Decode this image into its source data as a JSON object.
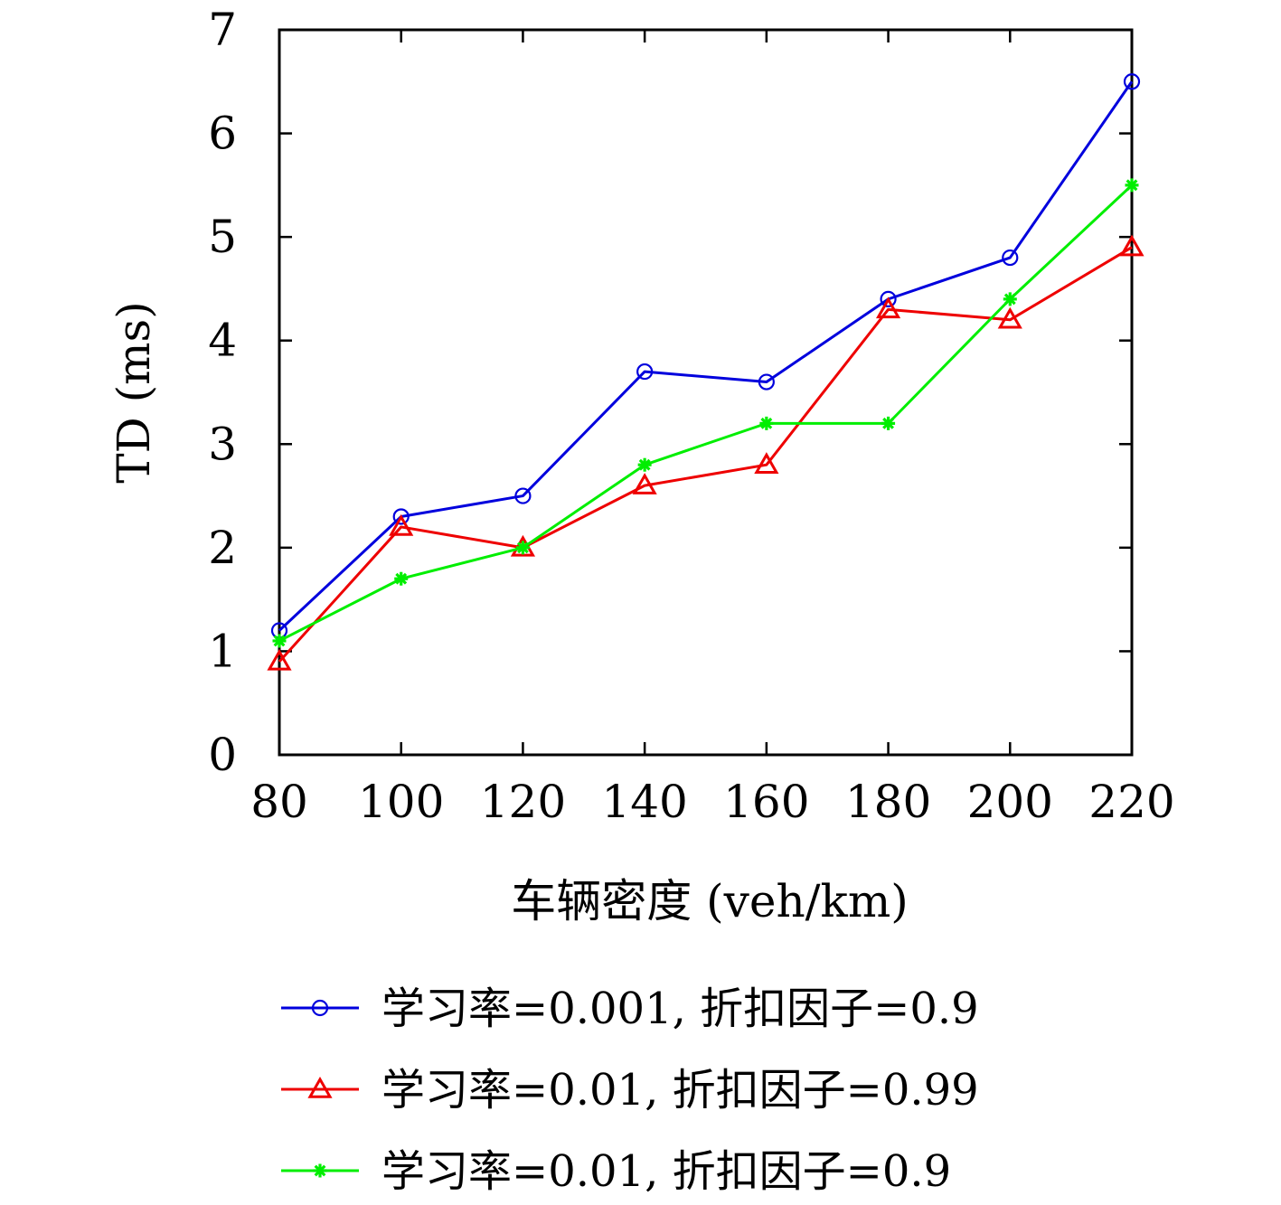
{
  "chart_data": {
    "type": "line",
    "title": "",
    "xlabel": "车辆密度 (veh/km)",
    "ylabel": "TD (ms)",
    "categories": [
      "80",
      "100",
      "120",
      "140",
      "160",
      "180",
      "200",
      "220"
    ],
    "x": [
      80,
      100,
      120,
      140,
      160,
      180,
      200,
      220
    ],
    "xlim": [
      80,
      220
    ],
    "ylim": [
      0,
      7
    ],
    "yticks": [
      "0",
      "1",
      "2",
      "3",
      "4",
      "5",
      "6",
      "7"
    ],
    "grid": false,
    "legend_position": "bottom",
    "series": [
      {
        "name": "学习率=0.001, 折扣因子=0.9",
        "color": "#0000dd",
        "marker": "circle",
        "values": [
          1.2,
          2.3,
          2.5,
          3.7,
          3.6,
          4.4,
          4.8,
          6.5
        ]
      },
      {
        "name": "学习率=0.01, 折扣因子=0.99",
        "color": "#ee0000",
        "marker": "triangle",
        "values": [
          0.9,
          2.2,
          2.0,
          2.6,
          2.8,
          4.3,
          4.2,
          4.9
        ]
      },
      {
        "name": "学习率=0.01, 折扣因子=0.9",
        "color": "#00ee00",
        "marker": "star",
        "values": [
          1.1,
          1.7,
          2.0,
          2.8,
          3.2,
          3.2,
          4.4,
          5.5
        ]
      }
    ]
  }
}
